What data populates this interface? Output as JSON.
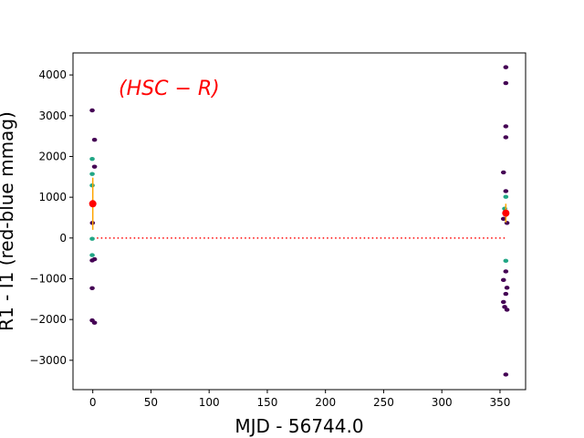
{
  "chart_data": {
    "type": "scatter",
    "xlabel": "MJD - 56744.0",
    "ylabel": "R1 - I1 (red-blue mmag)",
    "annotation": "(HSC − R)",
    "xlim": [
      -17,
      372
    ],
    "ylim": [
      -3720,
      4540
    ],
    "xticks": [
      0,
      50,
      100,
      150,
      200,
      250,
      300,
      350
    ],
    "yticks": [
      -3000,
      -2000,
      -1000,
      0,
      1000,
      2000,
      3000,
      4000
    ],
    "grid": false,
    "colors": {
      "dark_points": "#440154",
      "teal_points": "#21a685",
      "mean_points": "#ff0000",
      "error_bars": "#ffa500",
      "zero_line": "#ff0000",
      "annotation": "#ff0000"
    },
    "series": [
      {
        "style": "dark",
        "points": [
          [
            -0.5,
            3130
          ],
          [
            1.5,
            2410
          ],
          [
            1.5,
            1750
          ],
          [
            -0.3,
            370
          ],
          [
            -0.5,
            -550
          ],
          [
            1.5,
            -520
          ],
          [
            -0.5,
            -1230
          ],
          [
            -0.5,
            -2020
          ],
          [
            1.5,
            -2080
          ],
          [
            355,
            4190
          ],
          [
            355,
            3800
          ],
          [
            355,
            2740
          ],
          [
            355,
            2470
          ],
          [
            353,
            1610
          ],
          [
            355,
            1150
          ],
          [
            353,
            470
          ],
          [
            356,
            370
          ],
          [
            355,
            -820
          ],
          [
            353,
            -1030
          ],
          [
            356,
            -1220
          ],
          [
            355,
            -1370
          ],
          [
            353,
            -1570
          ],
          [
            354,
            -1690
          ],
          [
            356,
            -1760
          ],
          [
            355,
            -3350
          ]
        ]
      },
      {
        "style": "teal",
        "points": [
          [
            -0.5,
            1940
          ],
          [
            -0.5,
            1570
          ],
          [
            -0.5,
            1290
          ],
          [
            -0.5,
            -20
          ],
          [
            -0.5,
            -420
          ],
          [
            355,
            1010
          ],
          [
            354,
            720
          ],
          [
            355,
            570
          ],
          [
            355,
            -560
          ]
        ]
      }
    ],
    "means": [
      {
        "x": 0,
        "y": 840,
        "ylow": 200,
        "yhigh": 1480
      },
      {
        "x": 355,
        "y": 610,
        "ylow": 380,
        "yhigh": 840
      }
    ],
    "zero_line": {
      "y": 0,
      "x_from": 0,
      "x_to": 355
    }
  }
}
